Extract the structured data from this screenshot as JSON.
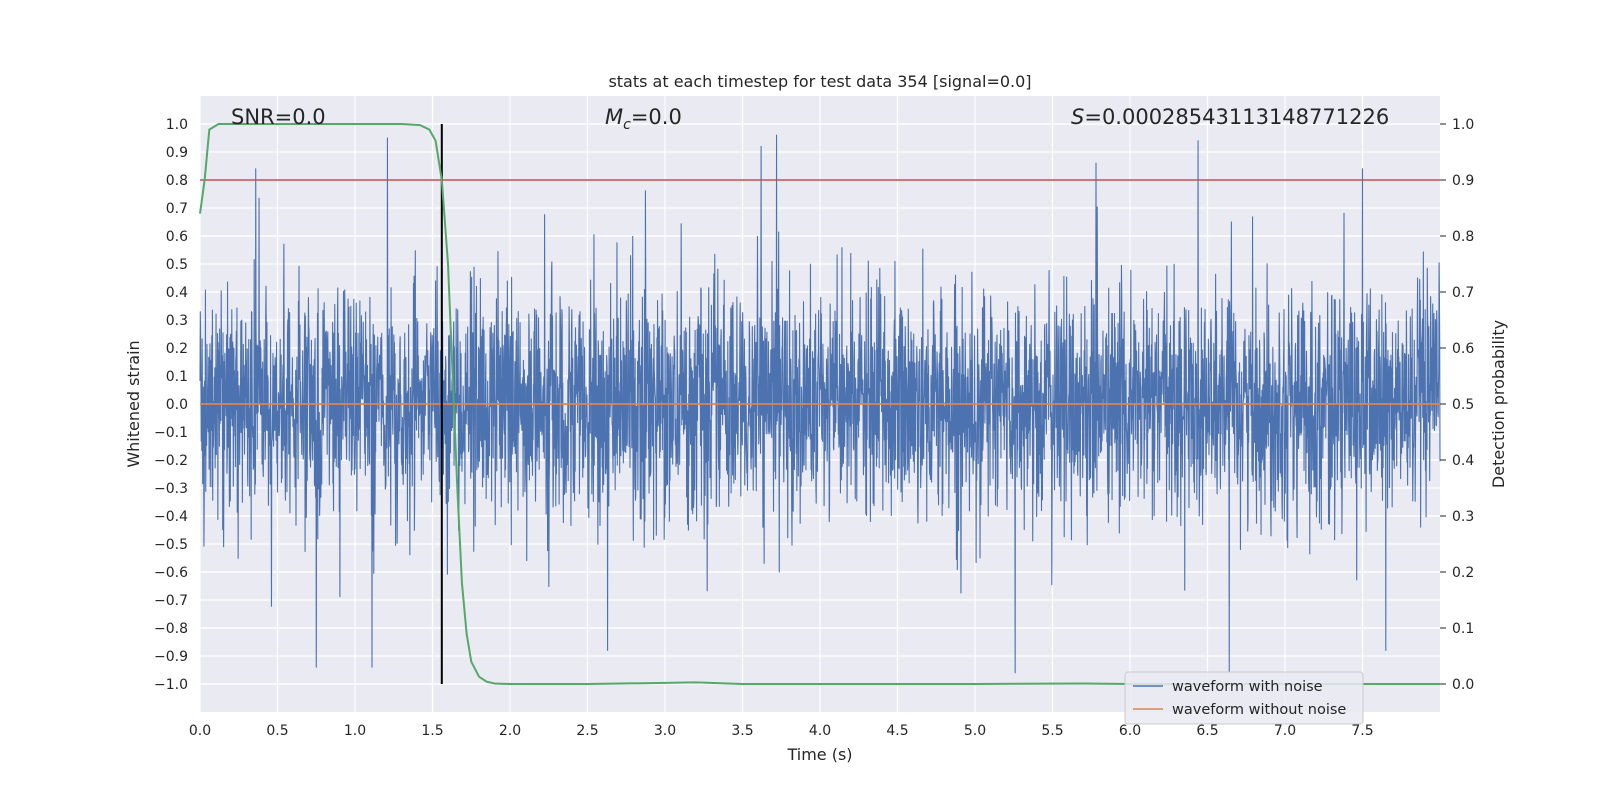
{
  "chart_data": {
    "type": "line",
    "title": "stats at each timestep for test data 354 [signal=0.0]",
    "xlabel": "Time (s)",
    "ylabel": "Whitened strain",
    "y2label": "Detection probability",
    "xlim": [
      0.0,
      8.0
    ],
    "ylim": [
      -1.1,
      1.1
    ],
    "y2lim": [
      -0.05,
      1.05
    ],
    "x_ticks": [
      0.0,
      0.5,
      1.0,
      1.5,
      2.0,
      2.5,
      3.0,
      3.5,
      4.0,
      4.5,
      5.0,
      5.5,
      6.0,
      6.5,
      7.0,
      7.5
    ],
    "x_tick_labels": [
      "0.0",
      "0.5",
      "1.0",
      "1.5",
      "2.0",
      "2.5",
      "3.0",
      "3.5",
      "4.0",
      "4.5",
      "5.0",
      "5.5",
      "6.0",
      "6.5",
      "7.0",
      "7.5"
    ],
    "y_ticks": [
      -1.0,
      -0.9,
      -0.8,
      -0.7,
      -0.6,
      -0.5,
      -0.4,
      -0.3,
      -0.2,
      -0.1,
      0.0,
      0.1,
      0.2,
      0.3,
      0.4,
      0.5,
      0.6,
      0.7,
      0.8,
      0.9,
      1.0
    ],
    "y_tick_labels": [
      "−1.0",
      "−0.9",
      "−0.8",
      "−0.7",
      "−0.6",
      "−0.5",
      "−0.4",
      "−0.3",
      "−0.2",
      "−0.1",
      "0.0",
      "0.1",
      "0.2",
      "0.3",
      "0.4",
      "0.5",
      "0.6",
      "0.7",
      "0.8",
      "0.9",
      "1.0"
    ],
    "y2_ticks": [
      0.0,
      0.1,
      0.2,
      0.3,
      0.4,
      0.5,
      0.6,
      0.7,
      0.8,
      0.9,
      1.0
    ],
    "y2_tick_labels": [
      "0.0",
      "0.1",
      "0.2",
      "0.3",
      "0.4",
      "0.5",
      "0.6",
      "0.7",
      "0.8",
      "0.9",
      "1.0"
    ],
    "grid": true,
    "legend_position": "bottom-right",
    "annotations": {
      "snr": "SNR=0.0",
      "mc_symbol": "M",
      "mc_subscript": "c",
      "mc_value": "=0.0",
      "s_symbol": "S",
      "s_value": "=0.00028543113148771226"
    },
    "series": [
      {
        "name": "waveform with noise",
        "axis": "left",
        "color": "#4c72b0",
        "kind": "noise",
        "amplitude_typical": 0.25,
        "peak_positive": 0.96,
        "peak_negative": -0.96,
        "peaks": [
          {
            "x": 0.36,
            "y": 0.84
          },
          {
            "x": 1.21,
            "y": 0.95
          },
          {
            "x": 1.56,
            "y": 0.82
          },
          {
            "x": 3.62,
            "y": 0.92
          },
          {
            "x": 3.72,
            "y": 0.96
          },
          {
            "x": 5.78,
            "y": 0.86
          },
          {
            "x": 6.44,
            "y": 0.94
          },
          {
            "x": 7.5,
            "y": 0.84
          },
          {
            "x": 0.75,
            "y": -0.94
          },
          {
            "x": 1.11,
            "y": -0.94
          },
          {
            "x": 2.63,
            "y": -0.88
          },
          {
            "x": 5.26,
            "y": -0.96
          },
          {
            "x": 6.64,
            "y": -0.96
          },
          {
            "x": 7.65,
            "y": -0.88
          }
        ]
      },
      {
        "name": "waveform without noise",
        "axis": "left",
        "color": "#dd8452",
        "x": [
          0.0,
          8.0
        ],
        "y": [
          0.0,
          0.0
        ]
      },
      {
        "name": "detection probability",
        "axis": "right",
        "color": "#55a868",
        "x": [
          0.0,
          0.03,
          0.06,
          0.12,
          0.25,
          0.5,
          1.0,
          1.3,
          1.42,
          1.48,
          1.52,
          1.56,
          1.6,
          1.63,
          1.66,
          1.69,
          1.72,
          1.75,
          1.8,
          1.85,
          1.9,
          2.0,
          2.5,
          3.0,
          3.2,
          3.5,
          4.0,
          5.0,
          5.7,
          6.0,
          7.0,
          8.0
        ],
        "y": [
          0.84,
          0.9,
          0.99,
          1.0,
          1.0,
          1.0,
          1.0,
          1.0,
          0.998,
          0.99,
          0.97,
          0.9,
          0.75,
          0.55,
          0.35,
          0.18,
          0.09,
          0.04,
          0.013,
          0.004,
          0.001,
          0.0,
          0.0,
          0.002,
          0.003,
          0.0,
          0.0,
          0.0,
          0.001,
          0.0,
          0.0,
          0.0
        ]
      }
    ],
    "hlines": [
      {
        "axis": "right",
        "y": 0.9,
        "color": "#c44e52"
      }
    ],
    "vlines": [
      {
        "x": 1.56,
        "ymin": -1.0,
        "ymax": 1.0,
        "color": "#000000"
      }
    ]
  }
}
